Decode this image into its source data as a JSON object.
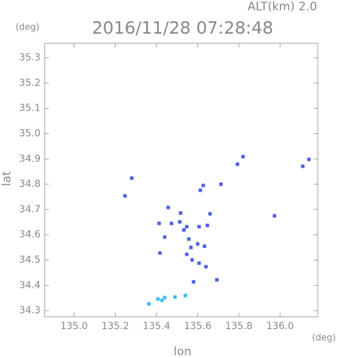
{
  "chart_data": {
    "type": "scatter",
    "title": "2016/11/28 07:28:48",
    "subtitle": "ALT(km) 2.0",
    "x_label": "lon",
    "y_label": "lat",
    "x_unit": "(deg)",
    "y_unit": "(deg)",
    "xlim": [
      134.857,
      136.183
    ],
    "ylim": [
      34.276,
      35.357
    ],
    "xticks": [
      {
        "value": 135,
        "label": "135.0"
      },
      135.2,
      135.4,
      135.6,
      135.8,
      {
        "value": 136,
        "label": "136.0"
      }
    ],
    "yticks": [
      34.3,
      34.4,
      34.5,
      34.6,
      34.7,
      34.8,
      34.9,
      {
        "value": 35,
        "label": "35.0"
      },
      35.1,
      35.2,
      35.3
    ],
    "series": [
      {
        "color": "#4a5ce6",
        "x": [
          135.247,
          135.28,
          135.457,
          135.517,
          135.627,
          135.613,
          135.713,
          135.793,
          135.82,
          136.14,
          136.11,
          135.973,
          135.66,
          135.473,
          135.513,
          135.413,
          135.44,
          135.417,
          135.547,
          135.607,
          135.647,
          135.557,
          135.6,
          135.567,
          135.547,
          135.573,
          135.607,
          135.64,
          135.693,
          135.58,
          135.633,
          135.533
        ],
        "y": [
          34.754,
          34.824,
          34.708,
          34.686,
          34.795,
          34.776,
          34.8,
          34.879,
          34.909,
          34.898,
          34.871,
          34.675,
          34.683,
          34.645,
          34.651,
          34.645,
          34.591,
          34.528,
          34.632,
          34.632,
          34.637,
          34.583,
          34.564,
          34.55,
          34.523,
          34.501,
          34.488,
          34.474,
          34.422,
          34.414,
          34.555,
          34.619
        ]
      },
      {
        "color": "#33bbee",
        "x": [
          135.363,
          135.407,
          135.44,
          135.49,
          135.54,
          135.427
        ],
        "y": [
          34.327,
          34.346,
          34.352,
          34.354,
          34.36,
          34.341
        ]
      }
    ]
  }
}
